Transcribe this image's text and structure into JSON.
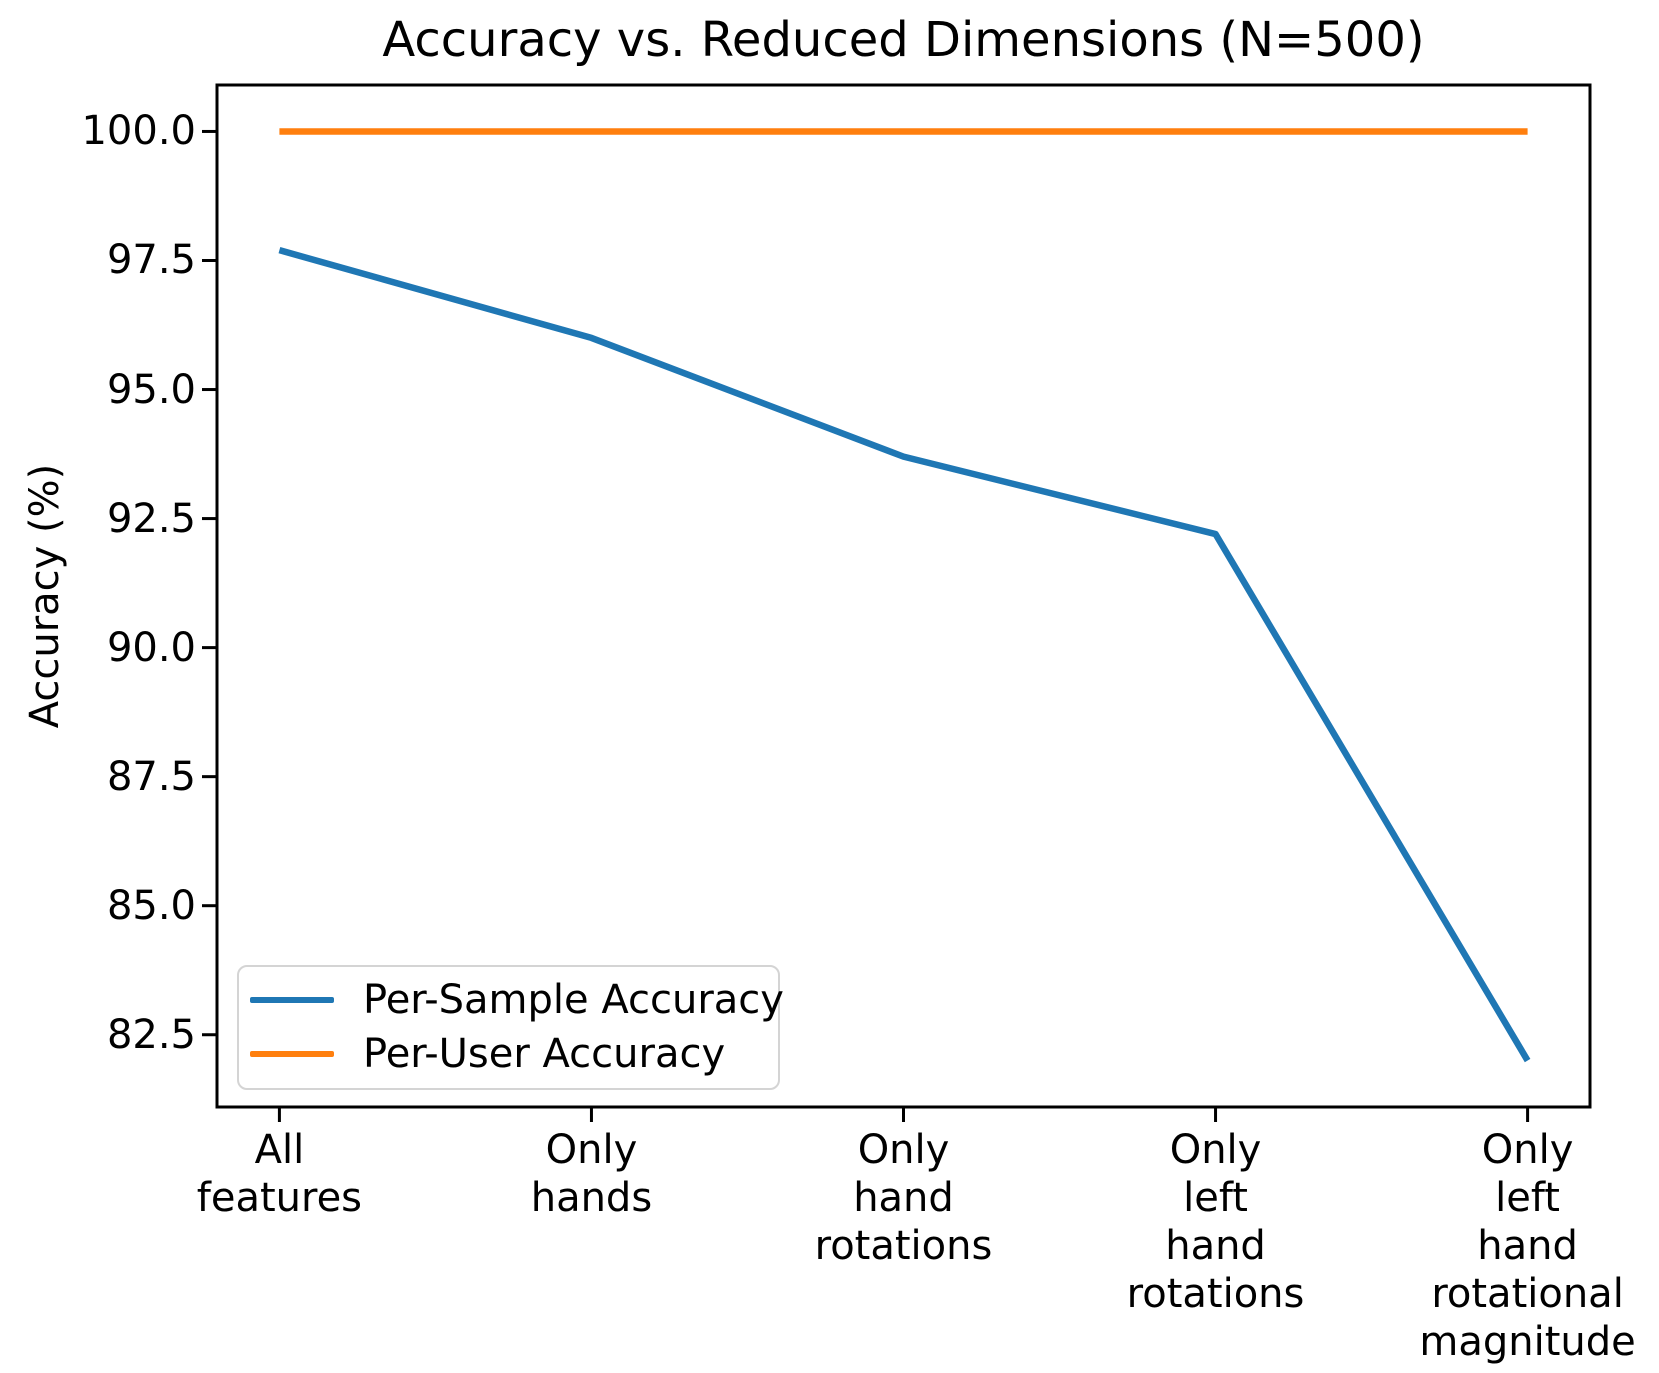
{
  "figure": {
    "background": "#ffffff",
    "text_color": "#000000",
    "spine_color": "#000000"
  },
  "chart_data": {
    "type": "line",
    "title": "Accuracy vs. Reduced Dimensions (N=500)",
    "xlabel": "",
    "ylabel": "Accuracy (%)",
    "categories": [
      "All\nfeatures",
      "Only\nhands",
      "Only\nhand\nrotations",
      "Only\nleft\nhand\nrotations",
      "Only\nleft\nhand\nrotational\nmagnitude"
    ],
    "series": [
      {
        "name": "Per-Sample Accuracy",
        "color": "#1f77b4",
        "values": [
          97.7,
          96.0,
          93.7,
          92.2,
          82.0
        ]
      },
      {
        "name": "Per-User Accuracy",
        "color": "#ff7f0e",
        "values": [
          100.0,
          100.0,
          100.0,
          100.0,
          100.0
        ]
      }
    ],
    "yticks": [
      82.5,
      85.0,
      87.5,
      90.0,
      92.5,
      95.0,
      97.5,
      100.0
    ],
    "ytick_labels": [
      "82.5",
      "85.0",
      "87.5",
      "90.0",
      "92.5",
      "95.0",
      "97.5",
      "100.0"
    ],
    "ylim": [
      81.1,
      100.9
    ],
    "grid": false,
    "legend_position": "lower left"
  }
}
